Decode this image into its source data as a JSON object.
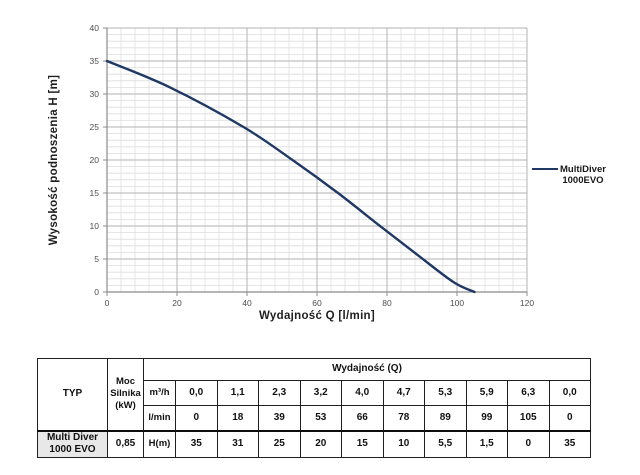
{
  "chart_data": {
    "type": "line",
    "title": "",
    "xlabel": "Wydajność Q [l/min]",
    "ylabel": "Wysokość podnoszenia H [m]",
    "xlim": [
      0,
      120
    ],
    "ylim": [
      0,
      40
    ],
    "x_ticks": [
      0,
      20,
      40,
      60,
      80,
      100,
      120
    ],
    "y_ticks": [
      0,
      5,
      10,
      15,
      20,
      25,
      30,
      35,
      40
    ],
    "x_minor_step": 4,
    "y_minor_step": 1,
    "grid": true,
    "legend_position": "right",
    "series": [
      {
        "name": "MultiDiver 1000EVO",
        "color": "#1f3864",
        "x": [
          0,
          18,
          39,
          53,
          66,
          78,
          89,
          99,
          105
        ],
        "y": [
          35,
          31,
          25,
          20,
          15,
          10,
          5.5,
          1.5,
          0
        ]
      }
    ],
    "colors": {
      "minor_grid": "#dedede",
      "major_grid": "#b3b3b3",
      "axis": "#8c8c8c",
      "tick_text": "#4d4d4d",
      "axis_title": "#1f1f1f"
    }
  },
  "legend": {
    "lines": "MultiDiver\n1000EVO"
  },
  "table": {
    "typ_header": "TYP",
    "moc_header": [
      "Moc",
      "Silnika",
      "(kW)"
    ],
    "wydajnosc_header": "Wydajność (Q)",
    "unit_rows": [
      {
        "unit": "m³/h",
        "values": [
          "0,0",
          "1,1",
          "2,3",
          "3,2",
          "4,0",
          "4,7",
          "5,3",
          "5,9",
          "6,3",
          "0,0"
        ]
      },
      {
        "unit": "l/min",
        "values": [
          "0",
          "18",
          "39",
          "53",
          "66",
          "78",
          "89",
          "99",
          "105",
          "0"
        ]
      }
    ],
    "data_row": {
      "typ": [
        "Multi Diver",
        "1000 EVO"
      ],
      "moc": "0,85",
      "unit": "H(m)",
      "values": [
        "35",
        "31",
        "25",
        "20",
        "15",
        "10",
        "5,5",
        "1,5",
        "0",
        "35"
      ]
    }
  }
}
